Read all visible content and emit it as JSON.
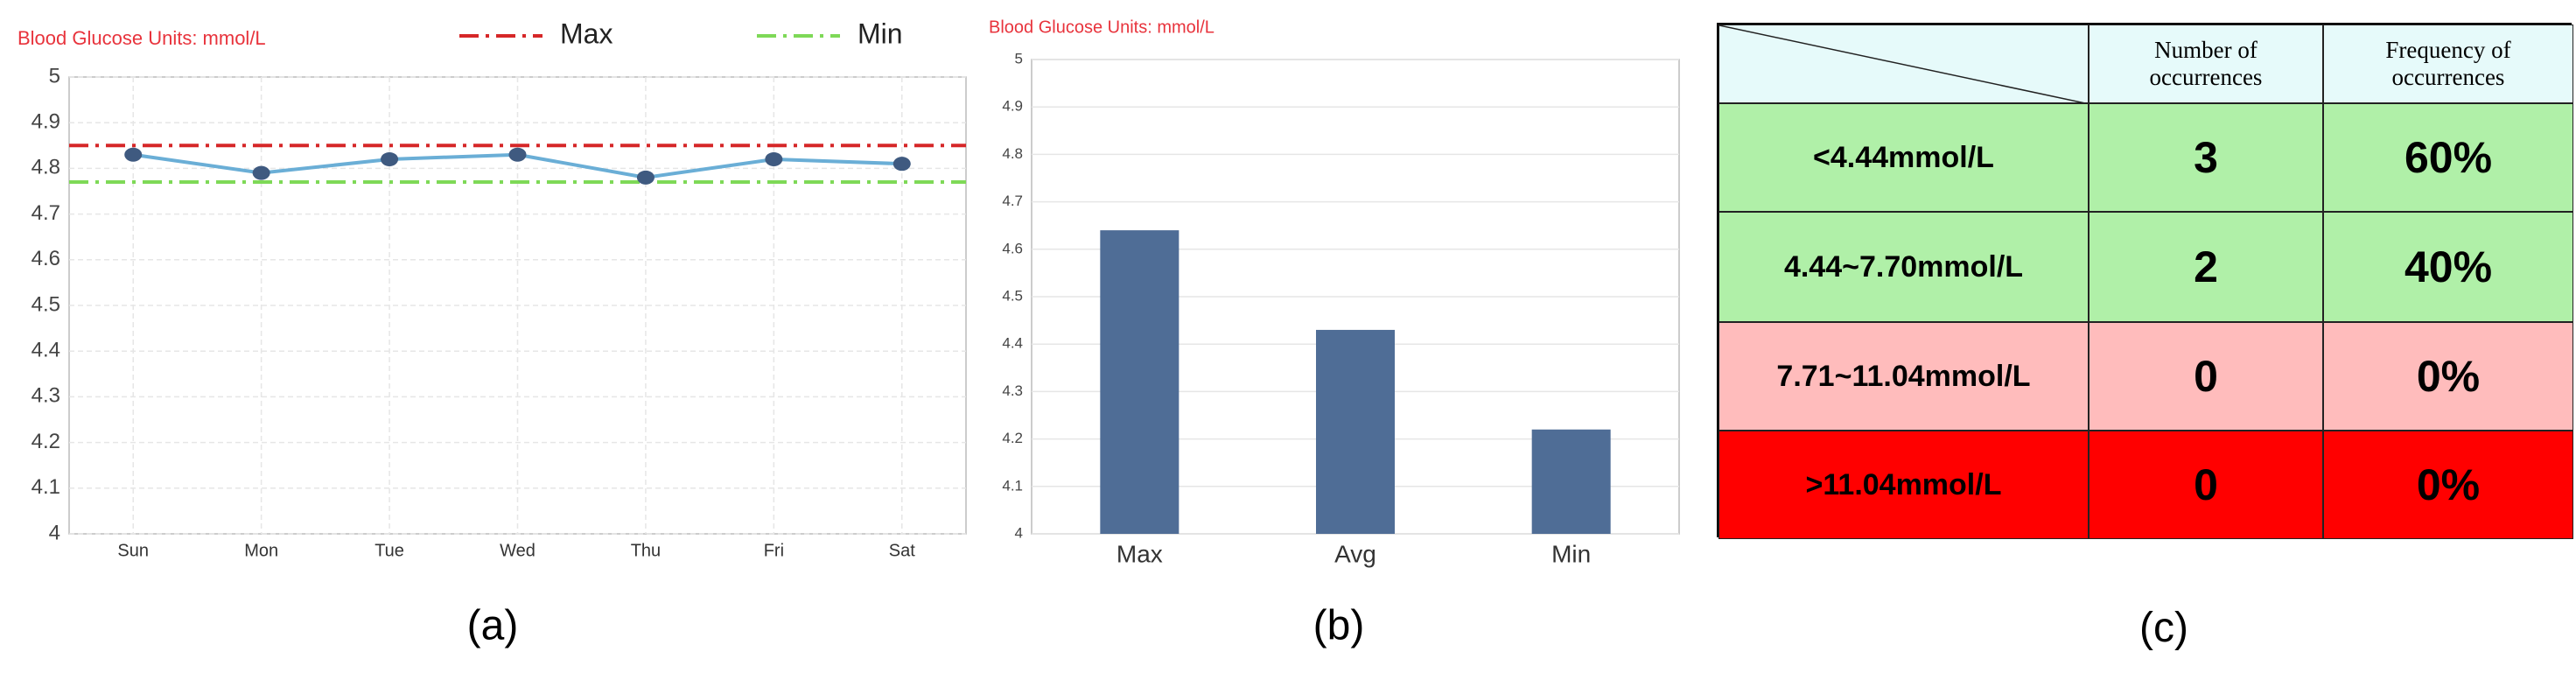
{
  "chart_data": [
    {
      "type": "line",
      "title": "Blood Glucose Units: mmol/L",
      "categories": [
        "Sun",
        "Mon",
        "Tue",
        "Wed",
        "Thu",
        "Fri",
        "Sat"
      ],
      "series": [
        {
          "color": "#6aaed6",
          "marker_color": "#3f5a80",
          "values": [
            4.83,
            4.79,
            4.82,
            4.83,
            4.78,
            4.82,
            4.81
          ]
        }
      ],
      "reference_lines": [
        {
          "name": "Max",
          "value": 4.85,
          "color": "#d62728"
        },
        {
          "name": "Min",
          "value": 4.77,
          "color": "#7ed957"
        }
      ],
      "ylim": [
        4,
        5
      ],
      "yticks": [
        4,
        4.1,
        4.2,
        4.3,
        4.4,
        4.5,
        4.6,
        4.7,
        4.8,
        4.9,
        5
      ],
      "grid": true,
      "caption": "(a)"
    },
    {
      "type": "bar",
      "title": "Blood Glucose Units: mmol/L",
      "categories": [
        "Max",
        "Avg",
        "Min"
      ],
      "values": [
        4.64,
        4.43,
        4.22
      ],
      "color": "#4f6d96",
      "ylim": [
        4,
        5
      ],
      "yticks": [
        4,
        4.1,
        4.2,
        4.3,
        4.4,
        4.5,
        4.6,
        4.7,
        4.8,
        4.9,
        5
      ],
      "grid": true,
      "caption": "(b)"
    }
  ],
  "table": {
    "columns": [
      "Number of occurrences",
      "Frequency of occurrences"
    ],
    "rows": [
      [
        "<4.44mmol/L",
        "3",
        "60%"
      ],
      [
        "4.44~7.70mmol/L",
        "2",
        "40%"
      ],
      [
        "7.71~11.04mmol/L",
        "0",
        "0%"
      ],
      [
        ">11.04mmol/L",
        "0",
        "0%"
      ]
    ],
    "caption": "(c)"
  }
}
